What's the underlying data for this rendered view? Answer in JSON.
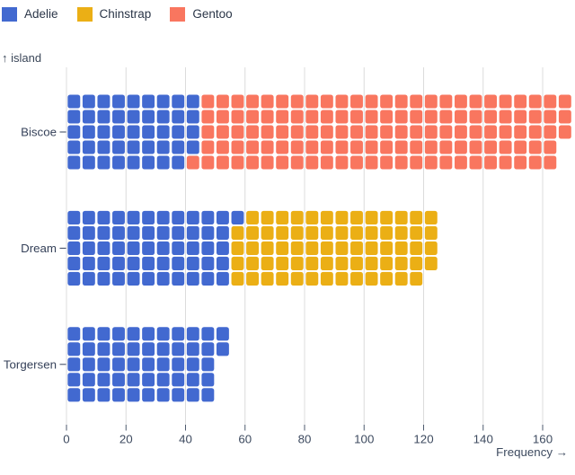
{
  "legend": {
    "items": [
      {
        "label": "Adelie",
        "color": "#4269d0"
      },
      {
        "label": "Chinstrap",
        "color": "#ebaf15"
      },
      {
        "label": "Gentoo",
        "color": "#f9765f"
      }
    ]
  },
  "chart": {
    "ylabel": "↑ island",
    "xlabel": "Frequency →"
  },
  "chart_data": {
    "type": "waffle",
    "orientation": "horizontal",
    "unit": 1,
    "rows_per_category": 5,
    "fill_order": "column-major-top-down",
    "title": "",
    "xlabel": "Frequency →",
    "ylabel": "island",
    "grid": true,
    "legend_position": "top-left",
    "categories": [
      "Biscoe",
      "Dream",
      "Torgersen"
    ],
    "series": [
      {
        "name": "Adelie",
        "color": "#4269d0",
        "values": [
          44,
          56,
          52
        ]
      },
      {
        "name": "Chinstrap",
        "color": "#ebaf15",
        "values": [
          0,
          68,
          0
        ]
      },
      {
        "name": "Gentoo",
        "color": "#f9765f",
        "values": [
          124,
          0,
          0
        ]
      }
    ],
    "totals": [
      168,
      124,
      52
    ],
    "x_ticks": [
      0,
      20,
      40,
      60,
      80,
      100,
      120,
      140,
      160
    ],
    "xlim": [
      0,
      170
    ]
  },
  "style": {
    "grid_color": "#dcdcdc",
    "tick_color": "#4d5a6e",
    "tick_label_color": "#3d4a5f",
    "category_label_color": "#36425a"
  }
}
